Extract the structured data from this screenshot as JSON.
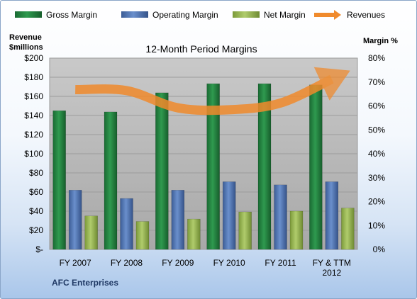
{
  "chart_data": {
    "type": "bar",
    "title": "12-Month Period Margins",
    "company": "AFC Enterprises",
    "categories": [
      [
        "FY 2007"
      ],
      [
        "FY 2008"
      ],
      [
        "FY 2009"
      ],
      [
        "FY 2010"
      ],
      [
        "FY 2011"
      ],
      [
        "FY & TTM",
        "2012"
      ]
    ],
    "left_axis": {
      "label_lines": [
        "Revenue",
        "$millions"
      ],
      "ylim": [
        0,
        200
      ],
      "ticks": [
        "$200",
        "$180",
        "$160",
        "$140",
        "$120",
        "$100",
        "$80",
        "$60",
        "$40",
        "$20",
        "$-"
      ]
    },
    "right_axis": {
      "label": "Margin %",
      "ylim": [
        0,
        80
      ],
      "ticks": [
        "80%",
        "70%",
        "60%",
        "50%",
        "40%",
        "30%",
        "20%",
        "10%",
        "0%"
      ]
    },
    "series": [
      {
        "name": "Gross Margin",
        "axis": "right",
        "color": "#217a3c",
        "values": [
          58,
          57.5,
          65.5,
          69.3,
          69.3,
          68.8
        ]
      },
      {
        "name": "Operating Margin",
        "axis": "right",
        "color": "#4a6fae",
        "values": [
          24.8,
          21.3,
          24.8,
          28.3,
          27,
          28.3
        ]
      },
      {
        "name": "Net Margin",
        "axis": "right",
        "color": "#92b04e",
        "values": [
          14,
          11.7,
          12.7,
          15.7,
          16,
          17.3
        ]
      },
      {
        "name": "Revenues",
        "axis": "left",
        "color": "#f08a2c",
        "type": "line",
        "values": [
          167,
          166,
          148,
          146,
          153,
          178
        ]
      }
    ],
    "grid": true,
    "legend_position": "top"
  }
}
